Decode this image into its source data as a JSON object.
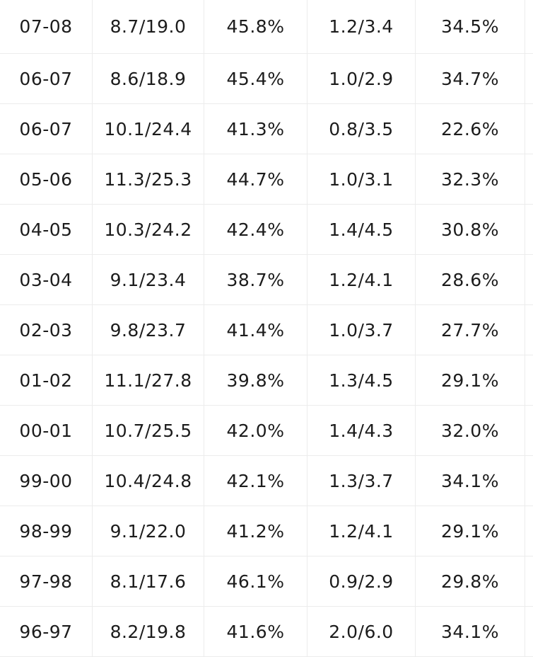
{
  "table": {
    "rows": [
      [
        "07-08",
        "8.7/19.0",
        "45.8%",
        "1.2/3.4",
        "34.5%"
      ],
      [
        "06-07",
        "8.6/18.9",
        "45.4%",
        "1.0/2.9",
        "34.7%"
      ],
      [
        "06-07",
        "10.1/24.4",
        "41.3%",
        "0.8/3.5",
        "22.6%"
      ],
      [
        "05-06",
        "11.3/25.3",
        "44.7%",
        "1.0/3.1",
        "32.3%"
      ],
      [
        "04-05",
        "10.3/24.2",
        "42.4%",
        "1.4/4.5",
        "30.8%"
      ],
      [
        "03-04",
        "9.1/23.4",
        "38.7%",
        "1.2/4.1",
        "28.6%"
      ],
      [
        "02-03",
        "9.8/23.7",
        "41.4%",
        "1.0/3.7",
        "27.7%"
      ],
      [
        "01-02",
        "11.1/27.8",
        "39.8%",
        "1.3/4.5",
        "29.1%"
      ],
      [
        "00-01",
        "10.7/25.5",
        "42.0%",
        "1.4/4.3",
        "32.0%"
      ],
      [
        "99-00",
        "10.4/24.8",
        "42.1%",
        "1.3/3.7",
        "34.1%"
      ],
      [
        "98-99",
        "9.1/22.0",
        "41.2%",
        "1.2/4.1",
        "29.1%"
      ],
      [
        "97-98",
        "8.1/17.6",
        "46.1%",
        "0.9/2.9",
        "29.8%"
      ],
      [
        "96-97",
        "8.2/19.8",
        "41.6%",
        "2.0/6.0",
        "34.1%"
      ]
    ]
  }
}
